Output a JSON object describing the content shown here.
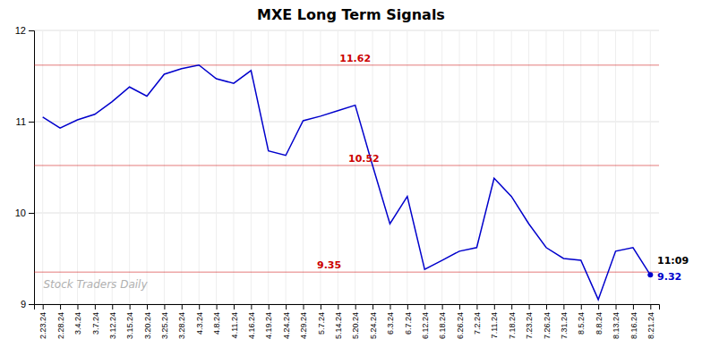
{
  "chart_data": {
    "type": "line",
    "title": "MXE Long Term Signals",
    "watermark": "Stock Traders Daily",
    "annotations": [
      {
        "text": "11:09"
      },
      {
        "text": "9.32",
        "color": "#0000cc"
      }
    ],
    "hlines": {
      "values": [
        11.62,
        10.52,
        9.35
      ],
      "color": "#cc0000"
    },
    "categories": [
      "2.23.24",
      "2.28.24",
      "3.4.24",
      "3.7.24",
      "3.12.24",
      "3.15.24",
      "3.20.24",
      "3.25.24",
      "3.28.24",
      "4.3.24",
      "4.8.24",
      "4.11.24",
      "4.16.24",
      "4.19.24",
      "4.24.24",
      "4.29.24",
      "5.7.24",
      "5.14.24",
      "5.20.24",
      "5.24.24",
      "6.3.24",
      "6.7.24",
      "6.12.24",
      "6.18.24",
      "6.26.24",
      "7.2.24",
      "7.11.24",
      "7.18.24",
      "7.23.24",
      "7.26.24",
      "7.31.24",
      "8.5.24",
      "8.8.24",
      "8.13.24",
      "8.16.24",
      "8.21.24"
    ],
    "values": [
      11.05,
      10.93,
      11.02,
      11.08,
      11.22,
      11.38,
      11.28,
      11.52,
      11.58,
      11.62,
      11.47,
      11.42,
      11.56,
      10.68,
      10.63,
      11.01,
      11.06,
      11.12,
      11.18,
      10.52,
      9.88,
      10.18,
      9.38,
      9.48,
      9.58,
      9.62,
      10.38,
      10.18,
      9.88,
      9.62,
      9.5,
      9.48,
      9.05,
      9.58,
      9.62,
      9.32
    ],
    "color": "#0000cc",
    "ylim": [
      9.0,
      12.0
    ],
    "yticks": [
      9,
      10,
      11,
      12
    ],
    "grid": true
  }
}
